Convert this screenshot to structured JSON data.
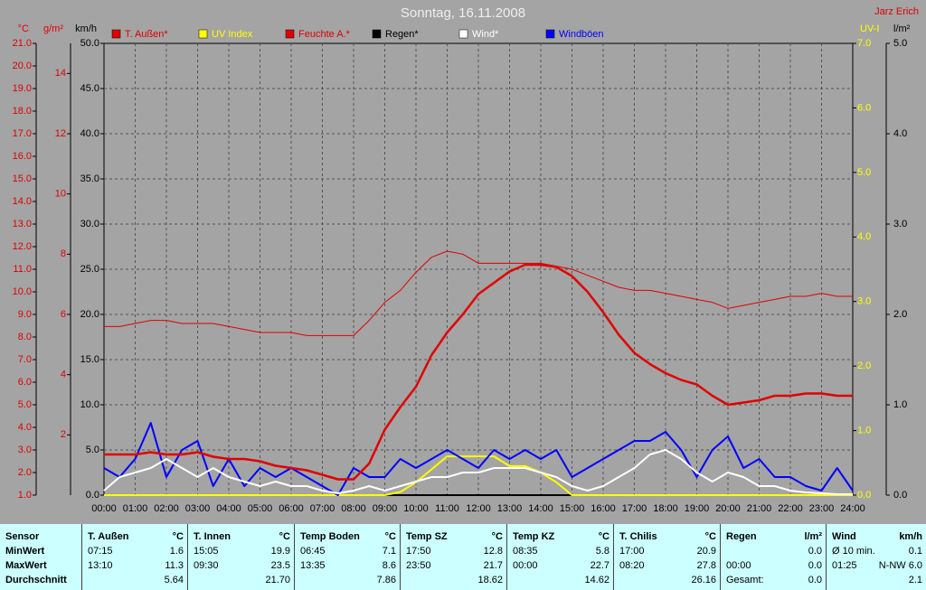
{
  "chart_data": {
    "type": "line",
    "title": "Sonntag, 16.11.2008",
    "author": "Jarz Erich",
    "grid": true,
    "xlim": [
      0,
      24
    ],
    "xticks": [
      {
        "value": 0,
        "label": "00:00"
      },
      {
        "value": 1,
        "label": "01:00"
      },
      {
        "value": 2,
        "label": "02:00"
      },
      {
        "value": 3,
        "label": "03:00"
      },
      {
        "value": 4,
        "label": "04:00"
      },
      {
        "value": 5,
        "label": "05:00"
      },
      {
        "value": 6,
        "label": "06:00"
      },
      {
        "value": 7,
        "label": "07:00"
      },
      {
        "value": 8,
        "label": "08:00"
      },
      {
        "value": 9,
        "label": "09:00"
      },
      {
        "value": 10,
        "label": "10:00"
      },
      {
        "value": 11,
        "label": "11:00"
      },
      {
        "value": 12,
        "label": "12:00"
      },
      {
        "value": 13,
        "label": "13:00"
      },
      {
        "value": 14,
        "label": "14:00"
      },
      {
        "value": 15,
        "label": "15:00"
      },
      {
        "value": 16,
        "label": "16:00"
      },
      {
        "value": 17,
        "label": "17:00"
      },
      {
        "value": 18,
        "label": "18:00"
      },
      {
        "value": 19,
        "label": "19:00"
      },
      {
        "value": 20,
        "label": "20:00"
      },
      {
        "value": 21,
        "label": "21:00"
      },
      {
        "value": 22,
        "label": "22:00"
      },
      {
        "value": 23,
        "label": "23:00"
      },
      {
        "value": 24,
        "label": "24:00"
      }
    ],
    "axes": [
      {
        "label": "°C",
        "color": "#e00000",
        "lim": [
          1,
          21
        ],
        "ticks": [
          {
            "value": 1,
            "label": "1.0"
          },
          {
            "value": 2,
            "label": "2.0"
          },
          {
            "value": 3,
            "label": "3.0"
          },
          {
            "value": 4,
            "label": "4.0"
          },
          {
            "value": 5,
            "label": "5.0"
          },
          {
            "value": 6,
            "label": "6.0"
          },
          {
            "value": 7,
            "label": "7.0"
          },
          {
            "value": 8,
            "label": "8.0"
          },
          {
            "value": 9,
            "label": "9.0"
          },
          {
            "value": 10,
            "label": "10.0"
          },
          {
            "value": 11,
            "label": "11.0"
          },
          {
            "value": 12,
            "label": "12.0"
          },
          {
            "value": 13,
            "label": "13.0"
          },
          {
            "value": 14,
            "label": "14.0"
          },
          {
            "value": 15,
            "label": "15.0"
          },
          {
            "value": 16,
            "label": "16.0"
          },
          {
            "value": 17,
            "label": "17.0"
          },
          {
            "value": 18,
            "label": "18.0"
          },
          {
            "value": 19,
            "label": "19.0"
          },
          {
            "value": 20,
            "label": "20.0"
          },
          {
            "value": 21,
            "label": "21.0"
          }
        ]
      },
      {
        "label": "g/m²",
        "color": "#e00000",
        "lim": [
          0,
          15
        ],
        "ticks": [
          2,
          4,
          6,
          8,
          10,
          12,
          14
        ]
      },
      {
        "label": "km/h",
        "color": "#000000",
        "lim": [
          0,
          50
        ],
        "ticks": [
          {
            "value": 0,
            "label": "0.0"
          },
          {
            "value": 5,
            "label": "5.0"
          },
          {
            "value": 10,
            "label": "10.0"
          },
          {
            "value": 15,
            "label": "15.0"
          },
          {
            "value": 20,
            "label": "20.0"
          },
          {
            "value": 25,
            "label": "25.0"
          },
          {
            "value": 30,
            "label": "30.0"
          },
          {
            "value": 35,
            "label": "35.0"
          },
          {
            "value": 40,
            "label": "40.0"
          },
          {
            "value": 45,
            "label": "45.0"
          },
          {
            "value": 50,
            "label": "50.0"
          }
        ]
      },
      {
        "label": "UV-I",
        "color": "#ffff00",
        "lim": [
          0,
          7
        ],
        "ticks": [
          {
            "value": 0,
            "label": "0.0"
          },
          {
            "value": 1,
            "label": "1.0"
          },
          {
            "value": 2,
            "label": "2.0"
          },
          {
            "value": 3,
            "label": "3.0"
          },
          {
            "value": 4,
            "label": "4.0"
          },
          {
            "value": 5,
            "label": "5.0"
          },
          {
            "value": 6,
            "label": "6.0"
          },
          {
            "value": 7,
            "label": "7.0"
          }
        ]
      },
      {
        "label": "l/m²",
        "color": "#000000",
        "lim": [
          0,
          5
        ],
        "ticks": [
          {
            "value": 0,
            "label": "0.0"
          },
          {
            "value": 1,
            "label": "1.0"
          },
          {
            "value": 2,
            "label": "2.0"
          },
          {
            "value": 3,
            "label": "3.0"
          },
          {
            "value": 4,
            "label": "4.0"
          },
          {
            "value": 5,
            "label": "5.0"
          }
        ]
      }
    ],
    "x": [
      0,
      0.5,
      1,
      1.5,
      2,
      2.5,
      3,
      3.5,
      4,
      4.5,
      5,
      5.5,
      6,
      6.5,
      7,
      7.5,
      8,
      8.5,
      9,
      9.5,
      10,
      10.5,
      11,
      11.5,
      12,
      12.5,
      13,
      13.5,
      14,
      14.5,
      15,
      15.5,
      16,
      16.5,
      17,
      17.5,
      18,
      18.5,
      19,
      19.5,
      20,
      20.5,
      21,
      21.5,
      22,
      22.5,
      23,
      23.5,
      24
    ],
    "series": [
      {
        "name": "Regen*",
        "color": "#000000",
        "axis": 4,
        "values": [
          0,
          0,
          0,
          0,
          0,
          0,
          0,
          0,
          0,
          0,
          0,
          0,
          0,
          0,
          0,
          0,
          0,
          0,
          0,
          0,
          0,
          0,
          0,
          0,
          0,
          0,
          0,
          0,
          0,
          0,
          0,
          0,
          0,
          0,
          0,
          0,
          0,
          0,
          0,
          0,
          0,
          0,
          0,
          0,
          0,
          0,
          0,
          0,
          0
        ]
      },
      {
        "name": "UV Index",
        "color": "#ffff00",
        "axis": 3,
        "values": [
          0,
          0,
          0,
          0,
          0,
          0,
          0,
          0,
          0,
          0,
          0,
          0,
          0,
          0,
          0,
          0,
          0,
          0,
          0,
          0.05,
          0.2,
          0.4,
          0.6,
          0.6,
          0.6,
          0.6,
          0.45,
          0.45,
          0.35,
          0.2,
          0,
          0,
          0,
          0,
          0,
          0,
          0,
          0,
          0,
          0,
          0,
          0,
          0,
          0,
          0,
          0,
          0,
          0,
          0
        ]
      },
      {
        "name": "Windböen",
        "color": "#0000ff",
        "axis": 2,
        "values": [
          3,
          2,
          4,
          8,
          2,
          5,
          6,
          1,
          4,
          1,
          3,
          2,
          3,
          2,
          1,
          0,
          3,
          2,
          2,
          4,
          3,
          4,
          5,
          4,
          3,
          5,
          4,
          5,
          4,
          5,
          2,
          3,
          4,
          5,
          6,
          6,
          7,
          5,
          2,
          5,
          6.5,
          3,
          4,
          2,
          2,
          1,
          0.5,
          3,
          0.5
        ]
      },
      {
        "name": "Wind*",
        "color": "#ffffff",
        "axis": 2,
        "values": [
          0.5,
          2,
          2.5,
          3,
          4,
          3,
          2,
          3,
          2,
          1.5,
          1,
          1.5,
          1,
          1,
          0.5,
          0.2,
          0.5,
          1,
          0.5,
          1,
          1.5,
          2,
          2,
          2.5,
          2.5,
          3,
          3,
          3,
          2.5,
          2,
          1,
          0.5,
          1,
          2,
          3,
          4.5,
          5,
          4,
          2.5,
          1.5,
          2.5,
          2,
          1,
          1,
          0.5,
          0.3,
          0.2,
          0.1,
          0.1
        ]
      },
      {
        "name": "Feuchte A.*",
        "color": "#e00000",
        "axis": 1,
        "width": 1,
        "values": [
          5.6,
          5.6,
          5.7,
          5.8,
          5.8,
          5.7,
          5.7,
          5.7,
          5.6,
          5.5,
          5.4,
          5.4,
          5.4,
          5.3,
          5.3,
          5.3,
          5.3,
          5.8,
          6.4,
          6.8,
          7.4,
          7.9,
          8.1,
          8.0,
          7.7,
          7.7,
          7.7,
          7.7,
          7.7,
          7.6,
          7.5,
          7.3,
          7.1,
          6.9,
          6.8,
          6.8,
          6.7,
          6.6,
          6.5,
          6.4,
          6.2,
          6.3,
          6.4,
          6.5,
          6.6,
          6.6,
          6.7,
          6.6,
          6.6
        ]
      },
      {
        "name": "T. Außen*",
        "color": "#e00000",
        "axis": 0,
        "width": 2.5,
        "values": [
          2.8,
          2.8,
          2.8,
          2.9,
          2.8,
          2.8,
          2.9,
          2.7,
          2.6,
          2.6,
          2.5,
          2.3,
          2.2,
          2.1,
          1.9,
          1.7,
          1.7,
          2.4,
          3.9,
          4.9,
          5.8,
          7.2,
          8.2,
          9.0,
          9.9,
          10.4,
          10.9,
          11.2,
          11.2,
          11.1,
          10.7,
          10.0,
          9.1,
          8.1,
          7.3,
          6.8,
          6.4,
          6.1,
          5.9,
          5.4,
          5.0,
          5.1,
          5.2,
          5.4,
          5.4,
          5.5,
          5.5,
          5.4,
          5.4
        ]
      }
    ],
    "legend_order": [
      5,
      1,
      4,
      0,
      3,
      2
    ]
  },
  "table": {
    "row_labels": [
      "Sensor",
      "MinWert",
      "MaxWert",
      "Durchschnitt"
    ],
    "columns": [
      {
        "name": "T. Außen",
        "unit": "°C",
        "min": {
          "time": "07:15",
          "value": "1.6"
        },
        "max": {
          "time": "13:10",
          "value": "11.3"
        },
        "avg": {
          "value": "5.64"
        }
      },
      {
        "name": "T. Innen",
        "unit": "°C",
        "min": {
          "time": "15:05",
          "value": "19.9"
        },
        "max": {
          "time": "09:30",
          "value": "23.5"
        },
        "avg": {
          "value": "21.70"
        }
      },
      {
        "name": "Temp Boden",
        "unit": "°C",
        "min": {
          "time": "06:45",
          "value": "7.1"
        },
        "max": {
          "time": "13:35",
          "value": "8.6"
        },
        "avg": {
          "value": "7.86"
        }
      },
      {
        "name": "Temp SZ",
        "unit": "°C",
        "min": {
          "time": "17:50",
          "value": "12.8"
        },
        "max": {
          "time": "23:50",
          "value": "21.7"
        },
        "avg": {
          "value": "18.62"
        }
      },
      {
        "name": "Temp KZ",
        "unit": "°C",
        "min": {
          "time": "08:35",
          "value": "5.8"
        },
        "max": {
          "time": "00:00",
          "value": "22.7"
        },
        "avg": {
          "value": "14.62"
        }
      },
      {
        "name": "T. Chilis",
        "unit": "°C",
        "min": {
          "time": "17:00",
          "value": "20.9"
        },
        "max": {
          "time": "08:20",
          "value": "27.8"
        },
        "avg": {
          "value": "26.16"
        }
      },
      {
        "name": "Regen",
        "unit": "l/m²",
        "min": {
          "value": "0.0"
        },
        "max": {
          "time": "00:00",
          "value": "0.0"
        },
        "avg": {
          "time": "Gesamt:",
          "value": "0.0"
        }
      },
      {
        "name": "Wind",
        "unit": "km/h",
        "min": {
          "time": "Ø 10 min.",
          "value": "0.1"
        },
        "max": {
          "time": "01:25",
          "value": "N-NW 6.0"
        },
        "avg": {
          "value": "2.1"
        }
      }
    ]
  }
}
